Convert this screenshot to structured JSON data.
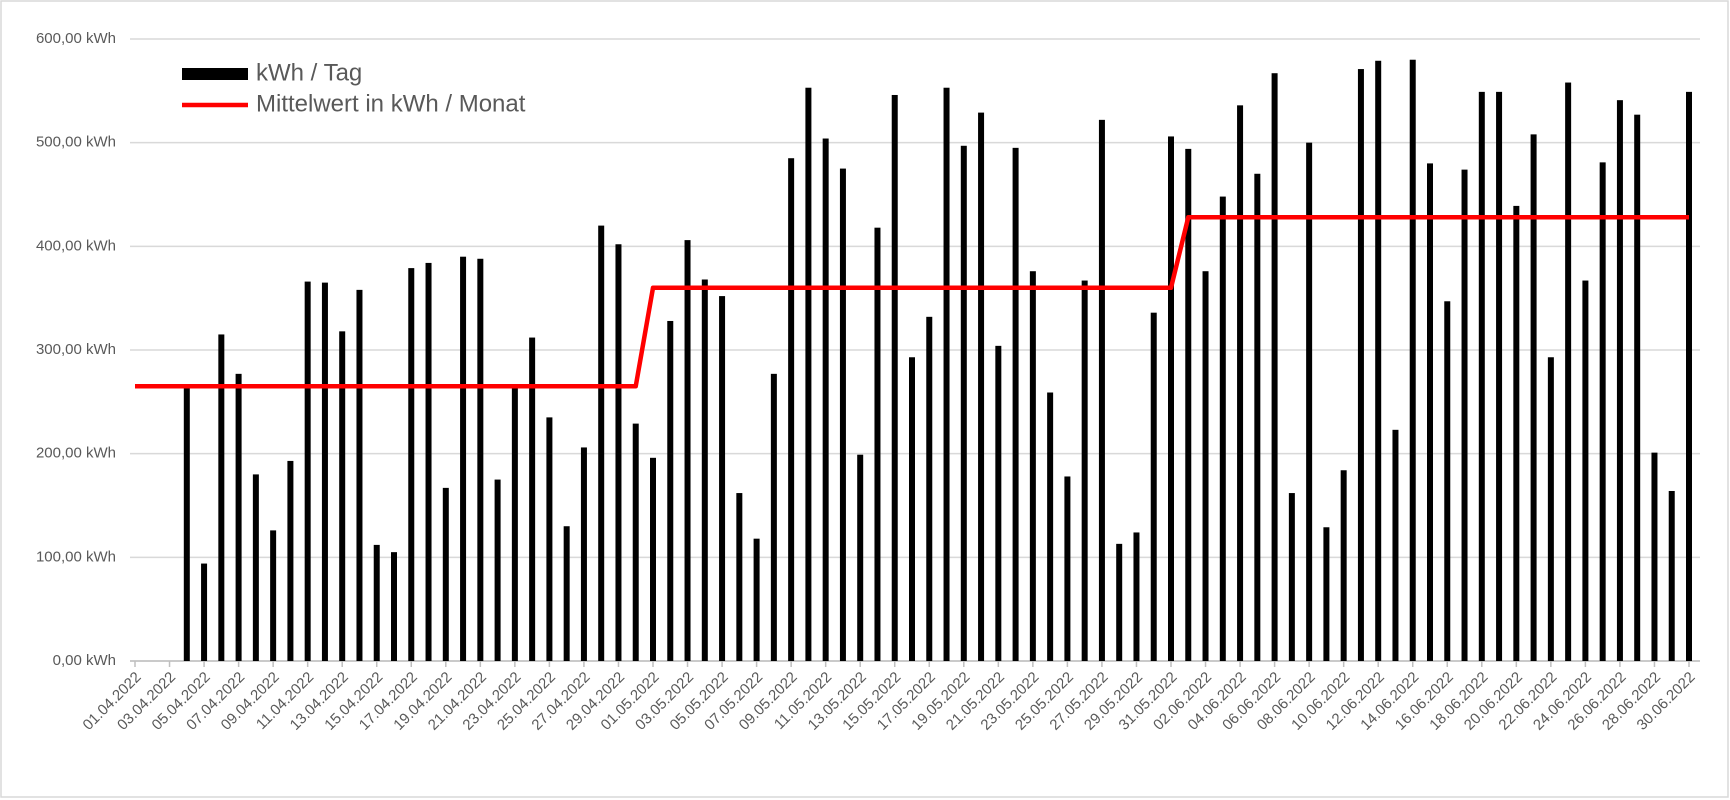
{
  "chart_data": {
    "type": "bar",
    "categories": [
      "01.04.2022",
      null,
      "03.04.2022",
      null,
      "05.04.2022",
      null,
      "07.04.2022",
      null,
      "09.04.2022",
      null,
      "11.04.2022",
      null,
      "13.04.2022",
      null,
      "15.04.2022",
      null,
      "17.04.2022",
      null,
      "19.04.2022",
      null,
      "21.04.2022",
      null,
      "23.04.2022",
      null,
      "25.04.2022",
      null,
      "27.04.2022",
      null,
      "29.04.2022",
      null,
      "01.05.2022",
      null,
      "03.05.2022",
      null,
      "05.05.2022",
      null,
      "07.05.2022",
      null,
      "09.05.2022",
      null,
      "11.05.2022",
      null,
      "13.05.2022",
      null,
      "15.05.2022",
      null,
      "17.05.2022",
      null,
      "19.05.2022",
      null,
      "21.05.2022",
      null,
      "23.05.2022",
      null,
      "25.05.2022",
      null,
      "27.05.2022",
      null,
      "29.05.2022",
      null,
      "31.05.2022",
      null,
      "02.06.2022",
      null,
      "04.06.2022",
      null,
      "06.06.2022",
      null,
      "08.06.2022",
      null,
      "10.06.2022",
      null,
      "12.06.2022",
      null,
      "14.06.2022",
      null,
      "16.06.2022",
      null,
      "18.06.2022",
      null,
      "20.06.2022",
      null,
      "22.06.2022",
      null,
      "24.06.2022",
      null,
      "26.06.2022",
      null,
      "28.06.2022",
      null,
      "30.06.2022"
    ],
    "series": [
      {
        "name": "kWh / Tag",
        "type": "bar",
        "color": "#000000",
        "values": [
          null,
          null,
          null,
          265,
          94,
          315,
          277,
          180,
          126,
          193,
          366,
          365,
          318,
          358,
          112,
          105,
          379,
          384,
          167,
          390,
          388,
          175,
          265,
          312,
          235,
          130,
          206,
          420,
          402,
          229,
          196,
          328,
          406,
          368,
          352,
          162,
          118,
          277,
          485,
          553,
          504,
          475,
          199,
          418,
          546,
          293,
          332,
          553,
          497,
          529,
          304,
          495,
          376,
          259,
          178,
          367,
          522,
          113,
          124,
          336,
          506,
          494,
          376,
          448,
          536,
          470,
          567,
          162,
          500,
          129,
          184,
          571,
          579,
          223,
          580,
          480,
          347,
          474,
          549,
          549,
          439,
          508,
          293,
          558,
          367,
          481,
          541,
          527,
          201,
          164,
          549
        ]
      },
      {
        "name": "Mittelwert in kWh / Monat",
        "type": "line",
        "color": "#ff0000",
        "values": [
          265,
          265,
          265,
          265,
          265,
          265,
          265,
          265,
          265,
          265,
          265,
          265,
          265,
          265,
          265,
          265,
          265,
          265,
          265,
          265,
          265,
          265,
          265,
          265,
          265,
          265,
          265,
          265,
          265,
          265,
          360,
          360,
          360,
          360,
          360,
          360,
          360,
          360,
          360,
          360,
          360,
          360,
          360,
          360,
          360,
          360,
          360,
          360,
          360,
          360,
          360,
          360,
          360,
          360,
          360,
          360,
          360,
          360,
          360,
          360,
          360,
          428,
          428,
          428,
          428,
          428,
          428,
          428,
          428,
          428,
          428,
          428,
          428,
          428,
          428,
          428,
          428,
          428,
          428,
          428,
          428,
          428,
          428,
          428,
          428,
          428,
          428,
          428,
          428,
          428,
          428
        ]
      }
    ],
    "ylim": [
      0,
      600
    ],
    "yticks": [
      {
        "value": 0,
        "label": "0,00 kWh"
      },
      {
        "value": 100,
        "label": "100,00 kWh"
      },
      {
        "value": 200,
        "label": "200,00 kWh"
      },
      {
        "value": 300,
        "label": "300,00 kWh"
      },
      {
        "value": 400,
        "label": "400,00 kWh"
      },
      {
        "value": 500,
        "label": "500,00 kWh"
      },
      {
        "value": 600,
        "label": "600,00 kWh"
      }
    ],
    "grid": true,
    "legend": "top-left"
  }
}
